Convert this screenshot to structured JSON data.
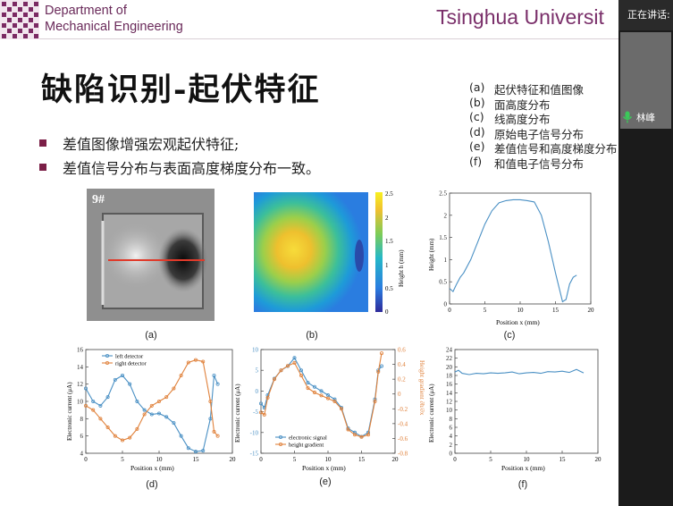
{
  "header": {
    "department_line1": "Department of",
    "department_line2": "Mechanical Engineering",
    "university": "Tsinghua Universit"
  },
  "side_panel": {
    "status": "正在讲话:",
    "speaker_name": "林峰"
  },
  "slide": {
    "title": "缺陷识别-起伏特征",
    "bullets": [
      "差值图像增强宏观起伏特征;",
      "差值信号分布与表面高度梯度分布一致。"
    ],
    "legend": [
      {
        "key": "(a)",
        "text": "起伏特征和值图像"
      },
      {
        "key": "(b)",
        "text": "面高度分布"
      },
      {
        "key": "(c)",
        "text": "线高度分布"
      },
      {
        "key": "(d)",
        "text": "原始电子信号分布"
      },
      {
        "key": "(e)",
        "text": "差值信号和高度梯度分布"
      },
      {
        "key": "(f)",
        "text": "和值电子信号分布"
      }
    ]
  },
  "figures": {
    "a": {
      "caption": "(a)",
      "sample_label": "9#"
    },
    "b": {
      "caption": "(b)",
      "colorbar_label": "Height h (mm)",
      "colorbar_ticks": [
        "2.5",
        "2",
        "1.5",
        "1",
        "0.5",
        "0"
      ]
    },
    "c": {
      "caption": "(c)",
      "xlabel": "Position x (mm)",
      "ylabel": "Height (mm)"
    },
    "d": {
      "caption": "(d)",
      "xlabel": "Position x (mm)",
      "ylabel": "Electronic current (μA)"
    },
    "e": {
      "caption": "(e)",
      "xlabel": "Position x (mm)",
      "ylabel": "Electronic current (μA)",
      "ylabel2": "Height gradient ∂h/∂x"
    },
    "f": {
      "caption": "(f)",
      "xlabel": "Position x (mm)",
      "ylabel": "Electronic current (μA)"
    }
  },
  "chart_data": [
    {
      "id": "c",
      "type": "line",
      "xlabel": "Position x (mm)",
      "ylabel": "Height (mm)",
      "xlim": [
        0,
        20
      ],
      "ylim": [
        0,
        2.5
      ],
      "xticks": [
        0,
        5,
        10,
        15,
        20
      ],
      "yticks": [
        0,
        0.5,
        1,
        1.5,
        2,
        2.5
      ],
      "series": [
        {
          "color": "#4a90c4",
          "x": [
            0,
            0.5,
            1,
            1.5,
            2,
            3,
            4,
            5,
            6,
            7,
            8,
            9,
            10,
            11,
            12,
            13,
            14,
            15,
            16,
            16.5,
            17,
            17.5,
            18
          ],
          "y": [
            0.35,
            0.28,
            0.45,
            0.6,
            0.7,
            1.0,
            1.4,
            1.8,
            2.1,
            2.28,
            2.33,
            2.35,
            2.35,
            2.33,
            2.3,
            2.0,
            1.4,
            0.7,
            0.05,
            0.1,
            0.45,
            0.6,
            0.65
          ]
        }
      ]
    },
    {
      "id": "d",
      "type": "line",
      "xlabel": "Position x (mm)",
      "ylabel": "Electronic current (μA)",
      "xlim": [
        0,
        20
      ],
      "ylim": [
        4,
        16
      ],
      "xticks": [
        0,
        5,
        10,
        15,
        20
      ],
      "yticks": [
        4,
        6,
        8,
        10,
        12,
        14,
        16
      ],
      "series": [
        {
          "name": "left detector",
          "color": "#4a90c4",
          "x": [
            0,
            1,
            2,
            3,
            4,
            5,
            6,
            7,
            8,
            9,
            10,
            11,
            12,
            13,
            14,
            15,
            16,
            17,
            17.5,
            18
          ],
          "y": [
            11.5,
            10,
            9.5,
            10.5,
            12.5,
            13,
            12,
            10,
            9,
            8.5,
            8.6,
            8.2,
            7.5,
            6,
            4.6,
            4.2,
            4.3,
            8,
            13,
            12
          ]
        },
        {
          "name": "right detector",
          "color": "#e0823c",
          "x": [
            0,
            1,
            2,
            3,
            4,
            5,
            6,
            7,
            8,
            9,
            10,
            11,
            12,
            13,
            14,
            15,
            16,
            17,
            17.5,
            18
          ],
          "y": [
            9.5,
            9,
            8,
            7,
            6,
            5.5,
            5.8,
            6.8,
            8.5,
            9.5,
            10,
            10.5,
            11.5,
            13,
            14.5,
            14.8,
            14.6,
            10,
            6.5,
            6
          ]
        }
      ]
    },
    {
      "id": "e",
      "type": "line",
      "xlabel": "Position x (mm)",
      "ylabel": "Electronic current (μA)",
      "ylabel2": "Height gradient ∂h/∂x",
      "xlim": [
        0,
        20
      ],
      "ylim": [
        -15,
        10
      ],
      "ylim2": [
        -0.8,
        0.6
      ],
      "xticks": [
        0,
        5,
        10,
        15,
        20
      ],
      "yticks": [
        -15,
        -10,
        -5,
        0,
        5,
        10
      ],
      "yticks2": [
        -0.8,
        -0.6,
        -0.4,
        -0.2,
        0,
        0.2,
        0.4,
        0.6
      ],
      "series": [
        {
          "name": "electronic signal",
          "color": "#4a90c4",
          "x": [
            0,
            0.5,
            1,
            2,
            3,
            4,
            5,
            6,
            7,
            8,
            9,
            10,
            11,
            12,
            13,
            14,
            15,
            16,
            17,
            17.5,
            18
          ],
          "y": [
            -3,
            -4,
            -1,
            3,
            5,
            6,
            8,
            5,
            2,
            1,
            0,
            -1,
            -2,
            -4,
            -9,
            -10,
            -11,
            -10,
            -2,
            5,
            6
          ]
        },
        {
          "name": "height gradient",
          "color": "#e0823c",
          "x": [
            0,
            0.5,
            1,
            2,
            3,
            4,
            5,
            6,
            7,
            8,
            9,
            10,
            11,
            12,
            13,
            14,
            15,
            16,
            17,
            17.5,
            18
          ],
          "y": [
            -0.25,
            -0.28,
            -0.05,
            0.2,
            0.32,
            0.38,
            0.42,
            0.25,
            0.08,
            0.02,
            -0.02,
            -0.06,
            -0.1,
            -0.2,
            -0.48,
            -0.55,
            -0.58,
            -0.55,
            -0.1,
            0.3,
            0.55
          ]
        }
      ]
    },
    {
      "id": "f",
      "type": "line",
      "xlabel": "Position x (mm)",
      "ylabel": "Electronic current (μA)",
      "xlim": [
        0,
        20
      ],
      "ylim": [
        0,
        24
      ],
      "xticks": [
        0,
        5,
        10,
        15,
        20
      ],
      "yticks": [
        0,
        2,
        4,
        6,
        8,
        10,
        12,
        14,
        16,
        18,
        20,
        22,
        24
      ],
      "series": [
        {
          "color": "#4a90c4",
          "x": [
            0,
            0.5,
            1,
            2,
            3,
            4,
            5,
            6,
            7,
            8,
            9,
            10,
            11,
            12,
            13,
            14,
            15,
            16,
            17,
            17.5,
            18
          ],
          "y": [
            18.8,
            19.2,
            18.5,
            18.2,
            18.5,
            18.4,
            18.6,
            18.5,
            18.6,
            18.8,
            18.4,
            18.6,
            18.7,
            18.5,
            18.9,
            18.8,
            19.0,
            18.7,
            19.4,
            19.0,
            18.6
          ]
        }
      ]
    }
  ]
}
